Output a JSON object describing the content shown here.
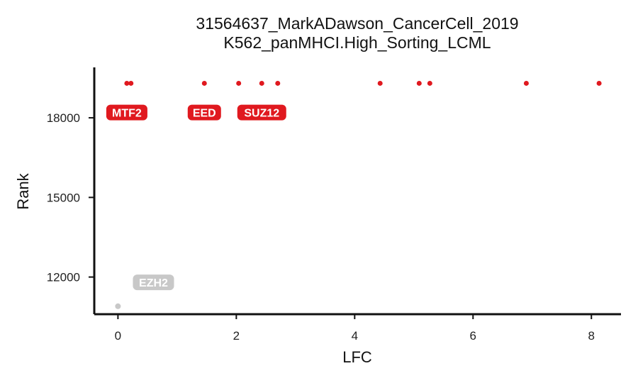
{
  "chart_data": {
    "type": "scatter",
    "title": "31564637_MarkADawson_CancerCell_2019",
    "subtitle": "K562_panMHCI.High_Sorting_LCML",
    "xlabel": "LFC",
    "ylabel": "Rank",
    "xlim": [
      -0.4,
      8.5
    ],
    "ylim": [
      10600,
      19900
    ],
    "xticks": [
      0,
      2,
      4,
      6,
      8
    ],
    "yticks": [
      12000,
      15000,
      18000
    ],
    "grid": false,
    "legend": "none",
    "highlight_color": "#e0191f",
    "muted_color": "#c8c8c8",
    "points": [
      {
        "x": 0.15,
        "y": 19300,
        "group": "highlight"
      },
      {
        "x": 0.22,
        "y": 19300,
        "group": "highlight"
      },
      {
        "x": 1.46,
        "y": 19300,
        "group": "highlight"
      },
      {
        "x": 2.04,
        "y": 19300,
        "group": "highlight"
      },
      {
        "x": 2.43,
        "y": 19300,
        "group": "highlight"
      },
      {
        "x": 2.7,
        "y": 19300,
        "group": "highlight"
      },
      {
        "x": 4.43,
        "y": 19300,
        "group": "highlight"
      },
      {
        "x": 5.09,
        "y": 19300,
        "group": "highlight"
      },
      {
        "x": 5.27,
        "y": 19300,
        "group": "highlight"
      },
      {
        "x": 6.9,
        "y": 19300,
        "group": "highlight"
      },
      {
        "x": 8.13,
        "y": 19300,
        "group": "highlight"
      },
      {
        "x": 0.0,
        "y": 10900,
        "group": "muted"
      }
    ],
    "labels": [
      {
        "text": "MTF2",
        "x": 0.15,
        "y": 18200,
        "group": "highlight"
      },
      {
        "text": "EED",
        "x": 1.46,
        "y": 18200,
        "group": "highlight"
      },
      {
        "text": "SUZ12",
        "x": 2.43,
        "y": 18200,
        "group": "highlight"
      },
      {
        "text": "EZH2",
        "x": 0.6,
        "y": 11800,
        "group": "muted"
      }
    ]
  }
}
